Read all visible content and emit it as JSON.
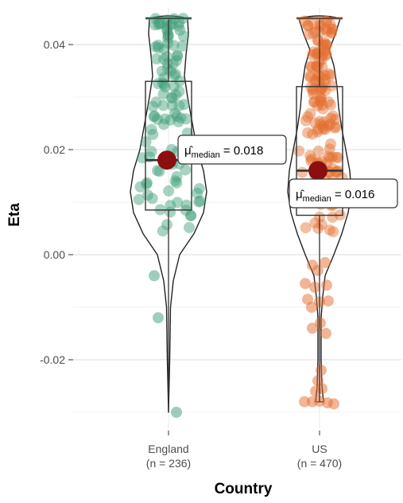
{
  "chart_data": {
    "type": "violin",
    "xlabel": "Country",
    "ylabel": "Eta",
    "ylim": [
      -0.032,
      0.048
    ],
    "yticks": [
      {
        "value": -0.02,
        "label": "-0.02"
      },
      {
        "value": 0.0,
        "label": "0.00"
      },
      {
        "value": 0.02,
        "label": "0.02"
      },
      {
        "value": 0.04,
        "label": "0.04"
      }
    ],
    "grid": true,
    "groups": [
      {
        "name": "England",
        "n_label": "(n = 236)",
        "color": "#3e9e78",
        "min": -0.03,
        "q1": 0.0085,
        "median": 0.018,
        "q3": 0.033,
        "max": 0.045,
        "median_label": {
          "symbol": "μ̂",
          "subscript": "median",
          "value_text": " = 0.018"
        }
      },
      {
        "name": "US",
        "n_label": "(n = 470)",
        "color": "#e46e2f",
        "min": -0.028,
        "q1": 0.0075,
        "median": 0.016,
        "q3": 0.032,
        "max": 0.045,
        "median_label": {
          "symbol": "μ̂",
          "subscript": "median",
          "value_text": " = 0.016"
        }
      }
    ],
    "median_point_color": "#8b0f0f"
  }
}
